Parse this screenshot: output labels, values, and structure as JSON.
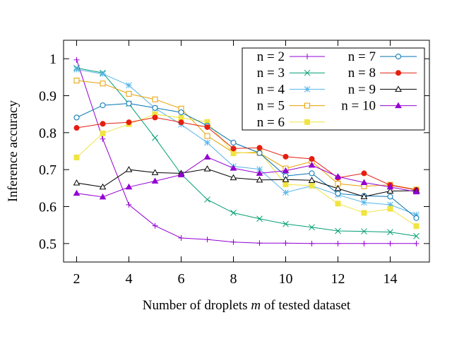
{
  "chart_data": {
    "type": "line",
    "title": "",
    "xlabel_prefix": "Number of droplets ",
    "xlabel_var": "m",
    "xlabel_suffix": " of tested dataset",
    "ylabel": "Inference accuracy",
    "xlim": [
      1.5,
      15.5
    ],
    "ylim": [
      0.45,
      1.05
    ],
    "xticks": [
      2,
      4,
      6,
      8,
      10,
      12,
      14
    ],
    "yticks": [
      0.5,
      0.6,
      0.7,
      0.8,
      0.9,
      1
    ],
    "ytick_labels": [
      "0.5",
      "0.6",
      "0.7",
      "0.8",
      "0.9",
      "1"
    ],
    "grid": false,
    "legend_position": "top-right",
    "x": [
      2,
      3,
      4,
      5,
      6,
      7,
      8,
      9,
      10,
      11,
      12,
      13,
      14,
      15
    ],
    "series": [
      {
        "name": "n = 2",
        "color": "#9400d3",
        "marker": "plus",
        "values": [
          0.997,
          0.783,
          0.605,
          0.548,
          0.515,
          0.511,
          0.504,
          0.501,
          0.501,
          0.5,
          0.5,
          0.5,
          0.5,
          0.5
        ]
      },
      {
        "name": "n = 3",
        "color": "#009e73",
        "marker": "cross",
        "values": [
          0.975,
          0.962,
          0.878,
          0.786,
          0.688,
          0.619,
          0.583,
          0.567,
          0.553,
          0.544,
          0.534,
          0.533,
          0.531,
          0.52
        ]
      },
      {
        "name": "n = 4",
        "color": "#56b4e9",
        "marker": "star",
        "values": [
          0.971,
          0.959,
          0.928,
          0.866,
          0.822,
          0.773,
          0.709,
          0.701,
          0.638,
          0.656,
          0.632,
          0.611,
          0.605,
          0.578
        ]
      },
      {
        "name": "n = 5",
        "color": "#e69f00",
        "marker": "square-open",
        "values": [
          0.941,
          0.933,
          0.905,
          0.89,
          0.865,
          0.791,
          0.746,
          0.745,
          0.703,
          0.722,
          0.662,
          0.655,
          0.659,
          0.646
        ]
      },
      {
        "name": "n = 6",
        "color": "#f0e442",
        "marker": "square-filled",
        "values": [
          0.733,
          0.798,
          0.823,
          0.85,
          0.84,
          0.829,
          0.744,
          0.748,
          0.66,
          0.657,
          0.608,
          0.583,
          0.594,
          0.547
        ]
      },
      {
        "name": "n = 7",
        "color": "#0072b2",
        "marker": "circle-open",
        "values": [
          0.841,
          0.874,
          0.879,
          0.867,
          0.855,
          0.819,
          0.773,
          0.745,
          0.683,
          0.69,
          0.635,
          0.629,
          0.627,
          0.569
        ]
      },
      {
        "name": "n = 8",
        "color": "#e51e10",
        "marker": "circle-filled",
        "values": [
          0.813,
          0.824,
          0.828,
          0.841,
          0.828,
          0.815,
          0.757,
          0.759,
          0.735,
          0.729,
          0.678,
          0.69,
          0.658,
          0.645
        ]
      },
      {
        "name": "n = 9",
        "color": "#000000",
        "marker": "triangle-open",
        "values": [
          0.664,
          0.653,
          0.7,
          0.692,
          0.69,
          0.702,
          0.678,
          0.672,
          0.673,
          0.671,
          0.649,
          0.627,
          0.642,
          0.643
        ]
      },
      {
        "name": "n = 10",
        "color": "#9400d3",
        "marker": "triangle-filled",
        "values": [
          0.636,
          0.626,
          0.653,
          0.669,
          0.686,
          0.734,
          0.704,
          0.69,
          0.697,
          0.712,
          0.681,
          0.665,
          0.653,
          0.64
        ]
      }
    ]
  }
}
